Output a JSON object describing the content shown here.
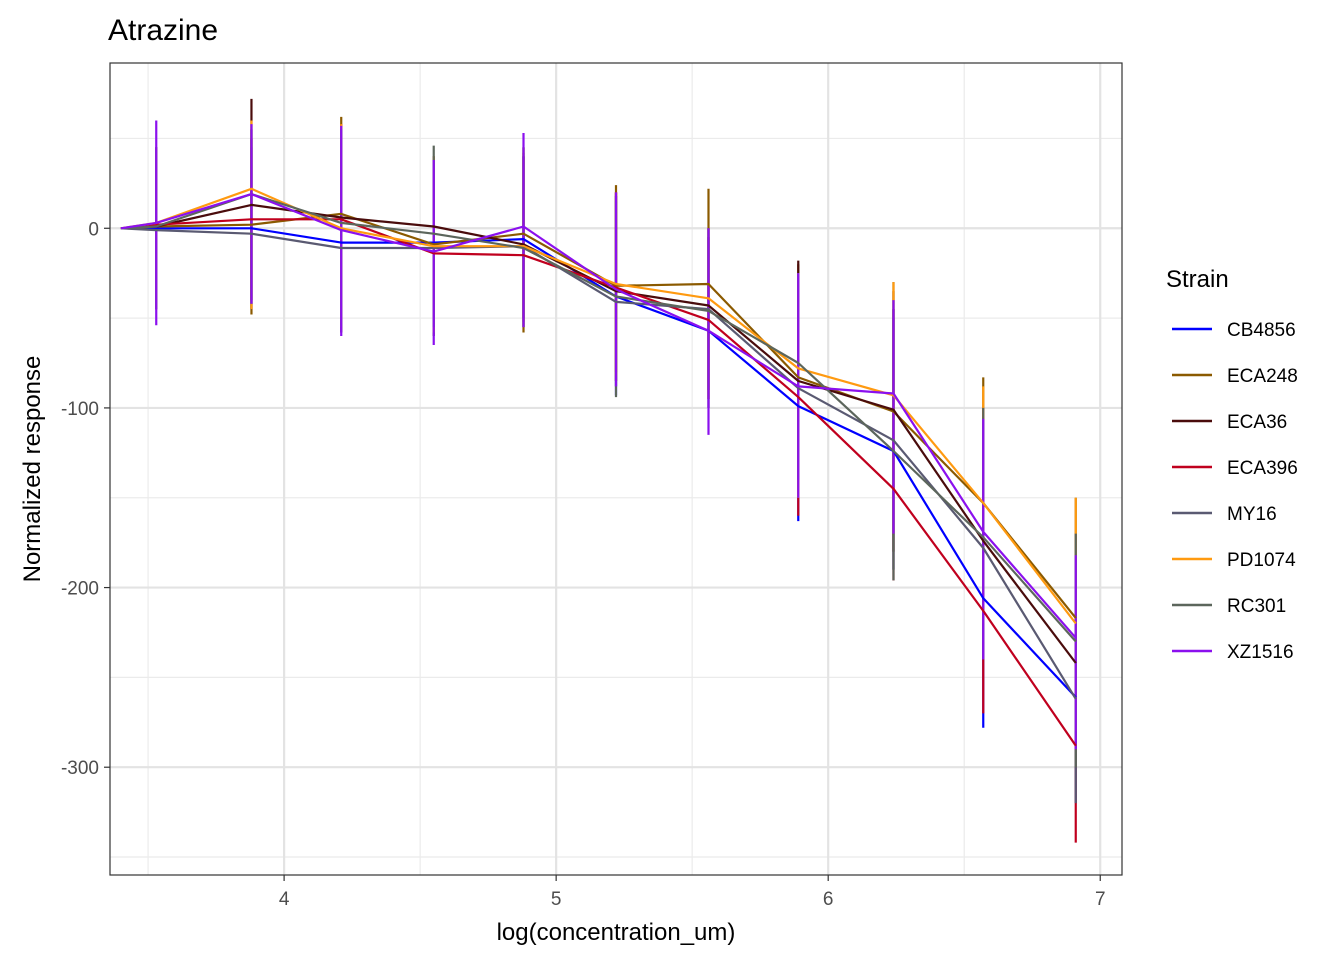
{
  "chart_data": {
    "type": "line",
    "title": "Atrazine",
    "xlabel": "log(concentration_um)",
    "ylabel": "Normalized response",
    "xlim": [
      3.36,
      7.08
    ],
    "ylim": [
      -360,
      92
    ],
    "x_ticks": [
      4,
      5,
      6,
      7
    ],
    "x_tick_labels": [
      "4",
      "5",
      "6",
      "7"
    ],
    "x_minor_ticks": [
      3.5,
      4.5,
      5.5,
      6.5
    ],
    "y_ticks": [
      0,
      -100,
      -200,
      -300
    ],
    "y_tick_labels": [
      "0",
      "-100",
      "-200",
      "-300"
    ],
    "y_minor_ticks": [
      50,
      -50,
      -150,
      -250,
      -350
    ],
    "grid": true,
    "legend": {
      "title": "Strain",
      "position": "right"
    },
    "x": [
      3.4,
      3.53,
      3.88,
      4.21,
      4.55,
      4.88,
      5.22,
      5.56,
      5.89,
      6.24,
      6.57,
      6.91
    ],
    "series": [
      {
        "name": "CB4856",
        "color": "#0000ff",
        "values": [
          0,
          0,
          0,
          -8,
          -8,
          -6,
          -38,
          -57,
          -99,
          -124,
          -206,
          -261
        ],
        "err_lo": [
          0,
          -40,
          -40,
          -55,
          -60,
          -50,
          -93,
          -100,
          -163,
          -190,
          -278,
          -320
        ],
        "err_hi": [
          0,
          40,
          45,
          55,
          35,
          40,
          18,
          -5,
          -30,
          -50,
          -120,
          -190
        ]
      },
      {
        "name": "ECA248",
        "color": "#8b5a00",
        "values": [
          0,
          1,
          2,
          8,
          -9,
          -3,
          -32,
          -31,
          -83,
          -102,
          -153,
          -217
        ],
        "err_lo": [
          0,
          -45,
          -48,
          -55,
          -60,
          -58,
          -80,
          -100,
          -150,
          -180,
          -230,
          -280
        ],
        "err_hi": [
          0,
          45,
          55,
          62,
          40,
          42,
          24,
          22,
          -20,
          -30,
          -83,
          -150
        ]
      },
      {
        "name": "ECA36",
        "color": "#4a0c0c",
        "values": [
          0,
          1,
          13,
          6,
          1,
          -9,
          -35,
          -43,
          -85,
          -101,
          -174,
          -242
        ],
        "err_lo": [
          0,
          -45,
          -45,
          -58,
          -55,
          -55,
          -85,
          -90,
          -150,
          -180,
          -240,
          -300
        ],
        "err_hi": [
          0,
          45,
          72,
          55,
          38,
          45,
          20,
          0,
          -18,
          -35,
          -100,
          -170
        ]
      },
      {
        "name": "ECA396",
        "color": "#c0001e",
        "values": [
          0,
          2,
          5,
          5,
          -14,
          -15,
          -33,
          -51,
          -94,
          -145,
          -213,
          -288
        ],
        "err_lo": [
          0,
          -45,
          -40,
          -55,
          -58,
          -52,
          -85,
          -95,
          -160,
          -196,
          -270,
          -342
        ],
        "err_hi": [
          0,
          45,
          50,
          58,
          40,
          40,
          20,
          -5,
          -30,
          -45,
          -100,
          -220
        ]
      },
      {
        "name": "MY16",
        "color": "#5a5a72",
        "values": [
          0,
          -1,
          -3,
          -11,
          -11,
          -10,
          -41,
          -45,
          -89,
          -118,
          -178,
          -262
        ],
        "err_lo": [
          0,
          -45,
          -45,
          -55,
          -58,
          -55,
          -88,
          -90,
          -150,
          -190,
          -240,
          -320
        ],
        "err_hi": [
          0,
          45,
          50,
          55,
          40,
          40,
          15,
          0,
          -25,
          -45,
          -110,
          -190
        ]
      },
      {
        "name": "PD1074",
        "color": "#ff9a10",
        "values": [
          0,
          3,
          22,
          0,
          -10,
          -10,
          -31,
          -39,
          -78,
          -93,
          -153,
          -220
        ],
        "err_lo": [
          0,
          -45,
          -45,
          -55,
          -58,
          -55,
          -82,
          -95,
          -150,
          -170,
          -220,
          -280
        ],
        "err_hi": [
          0,
          45,
          60,
          58,
          40,
          45,
          20,
          0,
          -25,
          -30,
          -88,
          -150
        ]
      },
      {
        "name": "RC301",
        "color": "#5c665c",
        "values": [
          0,
          1,
          19,
          3,
          -3,
          -11,
          -38,
          -46,
          -75,
          -124,
          -172,
          -230
        ],
        "err_lo": [
          0,
          -45,
          -42,
          -55,
          -55,
          -55,
          -94,
          -95,
          -140,
          -196,
          -230,
          -300
        ],
        "err_hi": [
          0,
          45,
          55,
          55,
          46,
          45,
          18,
          0,
          -25,
          -45,
          -100,
          -170
        ]
      },
      {
        "name": "XZ1516",
        "color": "#8b10ee",
        "values": [
          0,
          3,
          19,
          -1,
          -13,
          1,
          -34,
          -57,
          -88,
          -92,
          -169,
          -228
        ],
        "err_lo": [
          0,
          -54,
          -42,
          -60,
          -65,
          -55,
          -88,
          -115,
          -150,
          -170,
          -240,
          -290
        ],
        "err_hi": [
          0,
          60,
          58,
          57,
          38,
          53,
          20,
          0,
          -25,
          -40,
          -106,
          -182
        ]
      }
    ]
  }
}
